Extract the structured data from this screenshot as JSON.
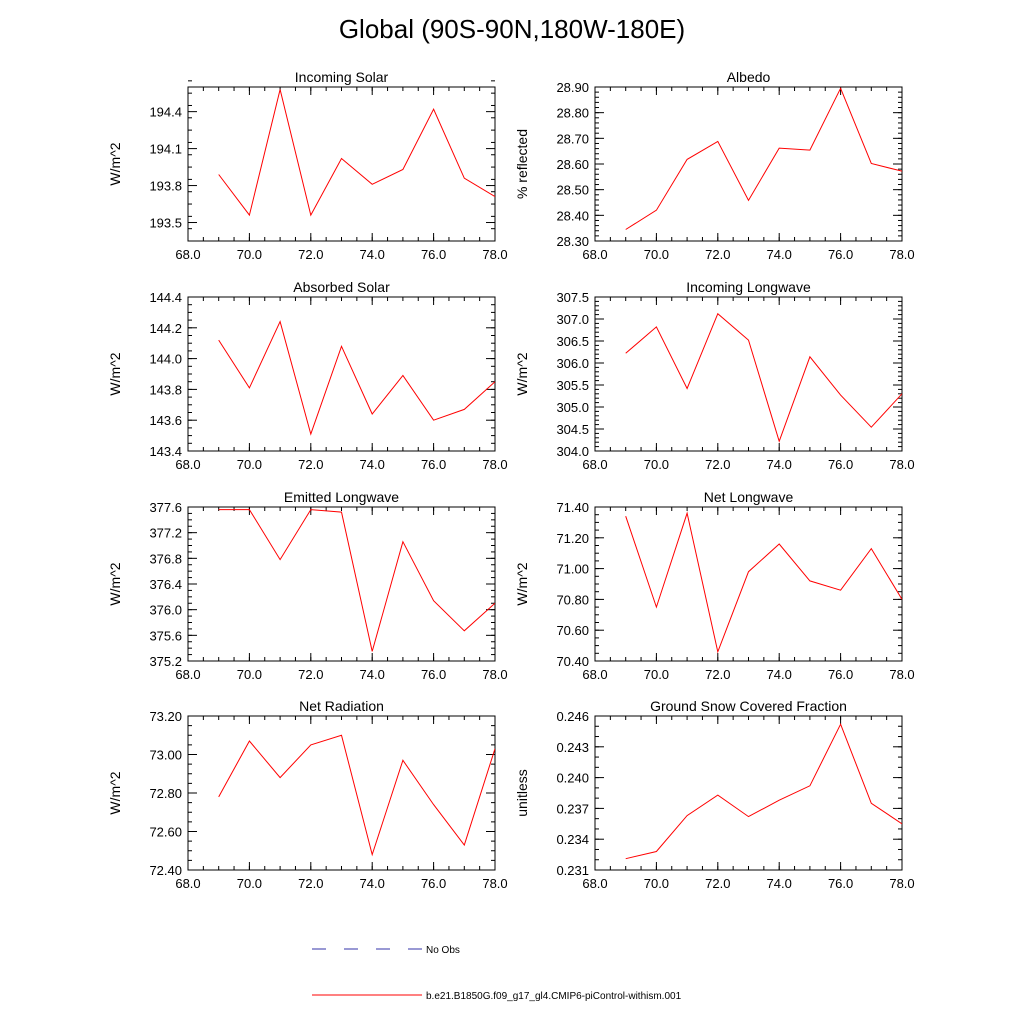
{
  "page": {
    "title": "Global (90S-90N,180W-180E)"
  },
  "colors": {
    "model": "#ff0000",
    "obs": "#3333aa",
    "frame": "#000000"
  },
  "legend": {
    "obs_label": "No Obs",
    "model_label": "b.e21.B1850G.f09_g17_gl4.CMIP6-piControl-withism.001"
  },
  "chart_data": [
    {
      "type": "line",
      "title": "Incoming Solar",
      "ylabel": "W/m^2",
      "xlim": [
        68,
        78
      ],
      "ylim": [
        193.35,
        194.6
      ],
      "xticks": [
        68,
        70,
        72,
        74,
        76,
        78
      ],
      "xtick_labels": [
        "68.0",
        "70.0",
        "72.0",
        "74.0",
        "76.0",
        "78.0"
      ],
      "yticks": [
        193.5,
        193.8,
        194.1,
        194.4
      ],
      "ytick_labels": [
        "193.5",
        "193.8",
        "194.1",
        "194.4"
      ],
      "yminor": 0.1,
      "series": [
        {
          "name": "b.e21.B1850G.f09_g17_gl4.CMIP6-piControl-withism.001",
          "x": [
            69,
            70,
            71,
            72,
            73,
            74,
            75,
            76,
            77,
            78
          ],
          "y": [
            193.89,
            193.56,
            194.58,
            193.56,
            194.02,
            193.81,
            193.93,
            194.42,
            193.86,
            193.71
          ]
        }
      ]
    },
    {
      "type": "line",
      "title": "Albedo",
      "ylabel": "% reflected",
      "xlim": [
        68,
        78
      ],
      "ylim": [
        28.3,
        28.9
      ],
      "xticks": [
        68,
        70,
        72,
        74,
        76,
        78
      ],
      "xtick_labels": [
        "68.0",
        "70.0",
        "72.0",
        "74.0",
        "76.0",
        "78.0"
      ],
      "yticks": [
        28.3,
        28.4,
        28.5,
        28.6,
        28.7,
        28.8,
        28.9
      ],
      "ytick_labels": [
        "28.30",
        "28.40",
        "28.50",
        "28.60",
        "28.70",
        "28.80",
        "28.90"
      ],
      "yminor": 0.02,
      "series": [
        {
          "name": "b.e21.B1850G.f09_g17_gl4.CMIP6-piControl-withism.001",
          "x": [
            69,
            70,
            71,
            72,
            73,
            74,
            75,
            76,
            77,
            78
          ],
          "y": [
            28.345,
            28.42,
            28.618,
            28.688,
            28.458,
            28.662,
            28.654,
            28.895,
            28.602,
            28.572
          ]
        }
      ]
    },
    {
      "type": "line",
      "title": "Absorbed Solar",
      "ylabel": "W/m^2",
      "xlim": [
        68,
        78
      ],
      "ylim": [
        143.4,
        144.4
      ],
      "xticks": [
        68,
        70,
        72,
        74,
        76,
        78
      ],
      "xtick_labels": [
        "68.0",
        "70.0",
        "72.0",
        "74.0",
        "76.0",
        "78.0"
      ],
      "yticks": [
        143.4,
        143.6,
        143.8,
        144.0,
        144.2,
        144.4
      ],
      "ytick_labels": [
        "143.4",
        "143.6",
        "143.8",
        "144.0",
        "144.2",
        "144.4"
      ],
      "yminor": 0.05,
      "series": [
        {
          "name": "b.e21.B1850G.f09_g17_gl4.CMIP6-piControl-withism.001",
          "x": [
            69,
            70,
            71,
            72,
            73,
            74,
            75,
            76,
            77,
            78
          ],
          "y": [
            144.12,
            143.81,
            144.24,
            143.51,
            144.08,
            143.64,
            143.89,
            143.6,
            143.67,
            143.85
          ]
        }
      ]
    },
    {
      "type": "line",
      "title": "Incoming Longwave",
      "ylabel": "W/m^2",
      "xlim": [
        68,
        78
      ],
      "ylim": [
        304.0,
        307.5
      ],
      "xticks": [
        68,
        70,
        72,
        74,
        76,
        78
      ],
      "xtick_labels": [
        "68.0",
        "70.0",
        "72.0",
        "74.0",
        "76.0",
        "78.0"
      ],
      "yticks": [
        304.0,
        304.5,
        305.0,
        305.5,
        306.0,
        306.5,
        307.0,
        307.5
      ],
      "ytick_labels": [
        "304.0",
        "304.5",
        "305.0",
        "305.5",
        "306.0",
        "306.5",
        "307.0",
        "307.5"
      ],
      "yminor": 0.1,
      "series": [
        {
          "name": "b.e21.B1850G.f09_g17_gl4.CMIP6-piControl-withism.001",
          "x": [
            69,
            70,
            71,
            72,
            73,
            74,
            75,
            76,
            77,
            78
          ],
          "y": [
            306.22,
            306.82,
            305.42,
            307.12,
            306.52,
            304.22,
            306.14,
            305.27,
            304.54,
            305.3
          ]
        }
      ]
    },
    {
      "type": "line",
      "title": "Emitted Longwave",
      "ylabel": "W/m^2",
      "xlim": [
        68,
        78
      ],
      "ylim": [
        375.2,
        377.6
      ],
      "xticks": [
        68,
        70,
        72,
        74,
        76,
        78
      ],
      "xtick_labels": [
        "68.0",
        "70.0",
        "72.0",
        "74.0",
        "76.0",
        "78.0"
      ],
      "yticks": [
        375.2,
        375.6,
        376.0,
        376.4,
        376.8,
        377.2,
        377.6
      ],
      "ytick_labels": [
        "375.2",
        "375.6",
        "376.0",
        "376.4",
        "376.8",
        "377.2",
        "377.6"
      ],
      "yminor": 0.1,
      "series": [
        {
          "name": "b.e21.B1850G.f09_g17_gl4.CMIP6-piControl-withism.001",
          "x": [
            69,
            70,
            71,
            72,
            73,
            74,
            75,
            76,
            77,
            78
          ],
          "y": [
            377.56,
            377.56,
            376.78,
            377.56,
            377.52,
            375.35,
            377.06,
            376.14,
            375.67,
            376.1
          ]
        }
      ]
    },
    {
      "type": "line",
      "title": "Net Longwave",
      "ylabel": "W/m^2",
      "xlim": [
        68,
        78
      ],
      "ylim": [
        70.4,
        71.4
      ],
      "xticks": [
        68,
        70,
        72,
        74,
        76,
        78
      ],
      "xtick_labels": [
        "68.0",
        "70.0",
        "72.0",
        "74.0",
        "76.0",
        "78.0"
      ],
      "yticks": [
        70.4,
        70.6,
        70.8,
        71.0,
        71.2,
        71.4
      ],
      "ytick_labels": [
        "70.40",
        "70.60",
        "70.80",
        "71.00",
        "71.20",
        "71.40"
      ],
      "yminor": 0.05,
      "series": [
        {
          "name": "b.e21.B1850G.f09_g17_gl4.CMIP6-piControl-withism.001",
          "x": [
            69,
            70,
            71,
            72,
            73,
            74,
            75,
            76,
            77,
            78
          ],
          "y": [
            71.34,
            70.75,
            71.36,
            70.46,
            70.98,
            71.16,
            70.92,
            70.86,
            71.13,
            70.8
          ]
        }
      ]
    },
    {
      "type": "line",
      "title": "Net Radiation",
      "ylabel": "W/m^2",
      "xlim": [
        68,
        78
      ],
      "ylim": [
        72.4,
        73.2
      ],
      "xticks": [
        68,
        70,
        72,
        74,
        76,
        78
      ],
      "xtick_labels": [
        "68.0",
        "70.0",
        "72.0",
        "74.0",
        "76.0",
        "78.0"
      ],
      "yticks": [
        72.4,
        72.6,
        72.8,
        73.0,
        73.2
      ],
      "ytick_labels": [
        "72.40",
        "72.60",
        "72.80",
        "73.00",
        "73.20"
      ],
      "yminor": 0.05,
      "series": [
        {
          "name": "b.e21.B1850G.f09_g17_gl4.CMIP6-piControl-withism.001",
          "x": [
            69,
            70,
            71,
            72,
            73,
            74,
            75,
            76,
            77,
            78
          ],
          "y": [
            72.78,
            73.07,
            72.88,
            73.05,
            73.1,
            72.48,
            72.97,
            72.74,
            72.53,
            73.03
          ]
        }
      ]
    },
    {
      "type": "line",
      "title": "Ground Snow Covered Fraction",
      "ylabel": "unitless",
      "xlim": [
        68,
        78
      ],
      "ylim": [
        0.231,
        0.246
      ],
      "xticks": [
        68,
        70,
        72,
        74,
        76,
        78
      ],
      "xtick_labels": [
        "68.0",
        "70.0",
        "72.0",
        "74.0",
        "76.0",
        "78.0"
      ],
      "yticks": [
        0.231,
        0.234,
        0.237,
        0.24,
        0.243,
        0.246
      ],
      "ytick_labels": [
        "0.231",
        "0.234",
        "0.237",
        "0.240",
        "0.243",
        "0.246"
      ],
      "yminor": 0.001,
      "series": [
        {
          "name": "b.e21.B1850G.f09_g17_gl4.CMIP6-piControl-withism.001",
          "x": [
            69,
            70,
            71,
            72,
            73,
            74,
            75,
            76,
            77,
            78
          ],
          "y": [
            0.2321,
            0.2328,
            0.2363,
            0.2383,
            0.2362,
            0.2378,
            0.2392,
            0.2452,
            0.2375,
            0.2355
          ]
        }
      ]
    }
  ]
}
